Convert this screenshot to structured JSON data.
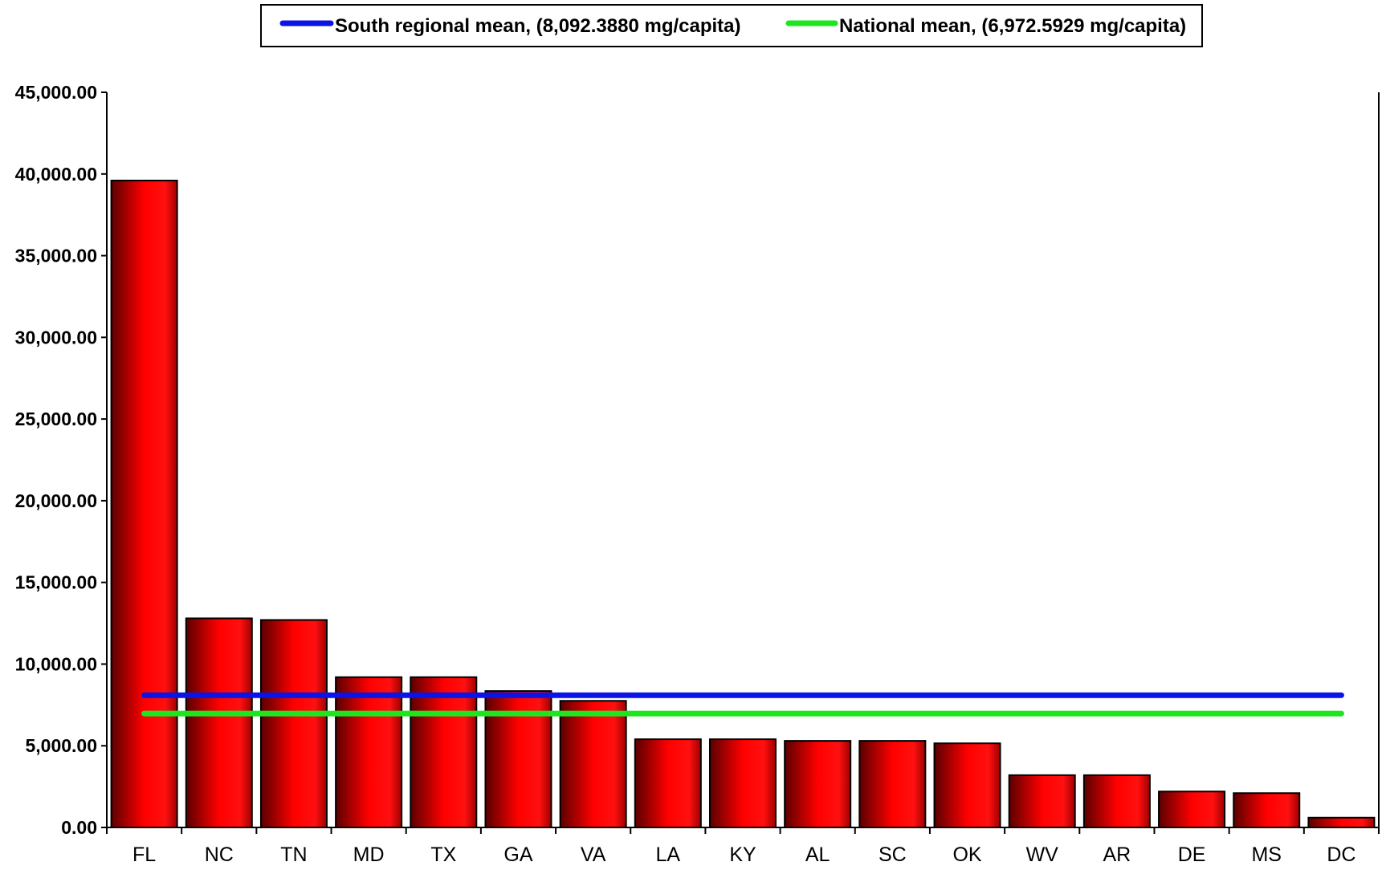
{
  "chart_data": {
    "type": "bar",
    "title": "",
    "xlabel": "",
    "ylabel": "",
    "categories": [
      "FL",
      "NC",
      "TN",
      "MD",
      "TX",
      "GA",
      "VA",
      "LA",
      "KY",
      "AL",
      "SC",
      "OK",
      "WV",
      "AR",
      "DE",
      "MS",
      "DC"
    ],
    "values": [
      39600,
      12800,
      12700,
      9200,
      9200,
      8350,
      7750,
      5400,
      5400,
      5300,
      5300,
      5150,
      3200,
      3200,
      2200,
      2100,
      600
    ],
    "ylim": [
      0,
      45000
    ],
    "yticks": [
      0,
      5000,
      10000,
      15000,
      20000,
      25000,
      30000,
      35000,
      40000,
      45000
    ],
    "ytick_labels": [
      "0.00",
      "5,000.00",
      "10,000.00",
      "15,000.00",
      "20,000.00",
      "25,000.00",
      "30,000.00",
      "35,000.00",
      "40,000.00",
      "45,000.00"
    ],
    "reference_lines": [
      {
        "name": "South regional mean, (8,092.3880 mg/capita)",
        "value": 8092.388,
        "color": "#0a14e6"
      },
      {
        "name": "National mean, (6,972.5929 mg/capita)",
        "value": 6972.5929,
        "color": "#1ee61e"
      }
    ],
    "bar_color": "#e60000",
    "grid": false,
    "legend_position": "top-center"
  }
}
